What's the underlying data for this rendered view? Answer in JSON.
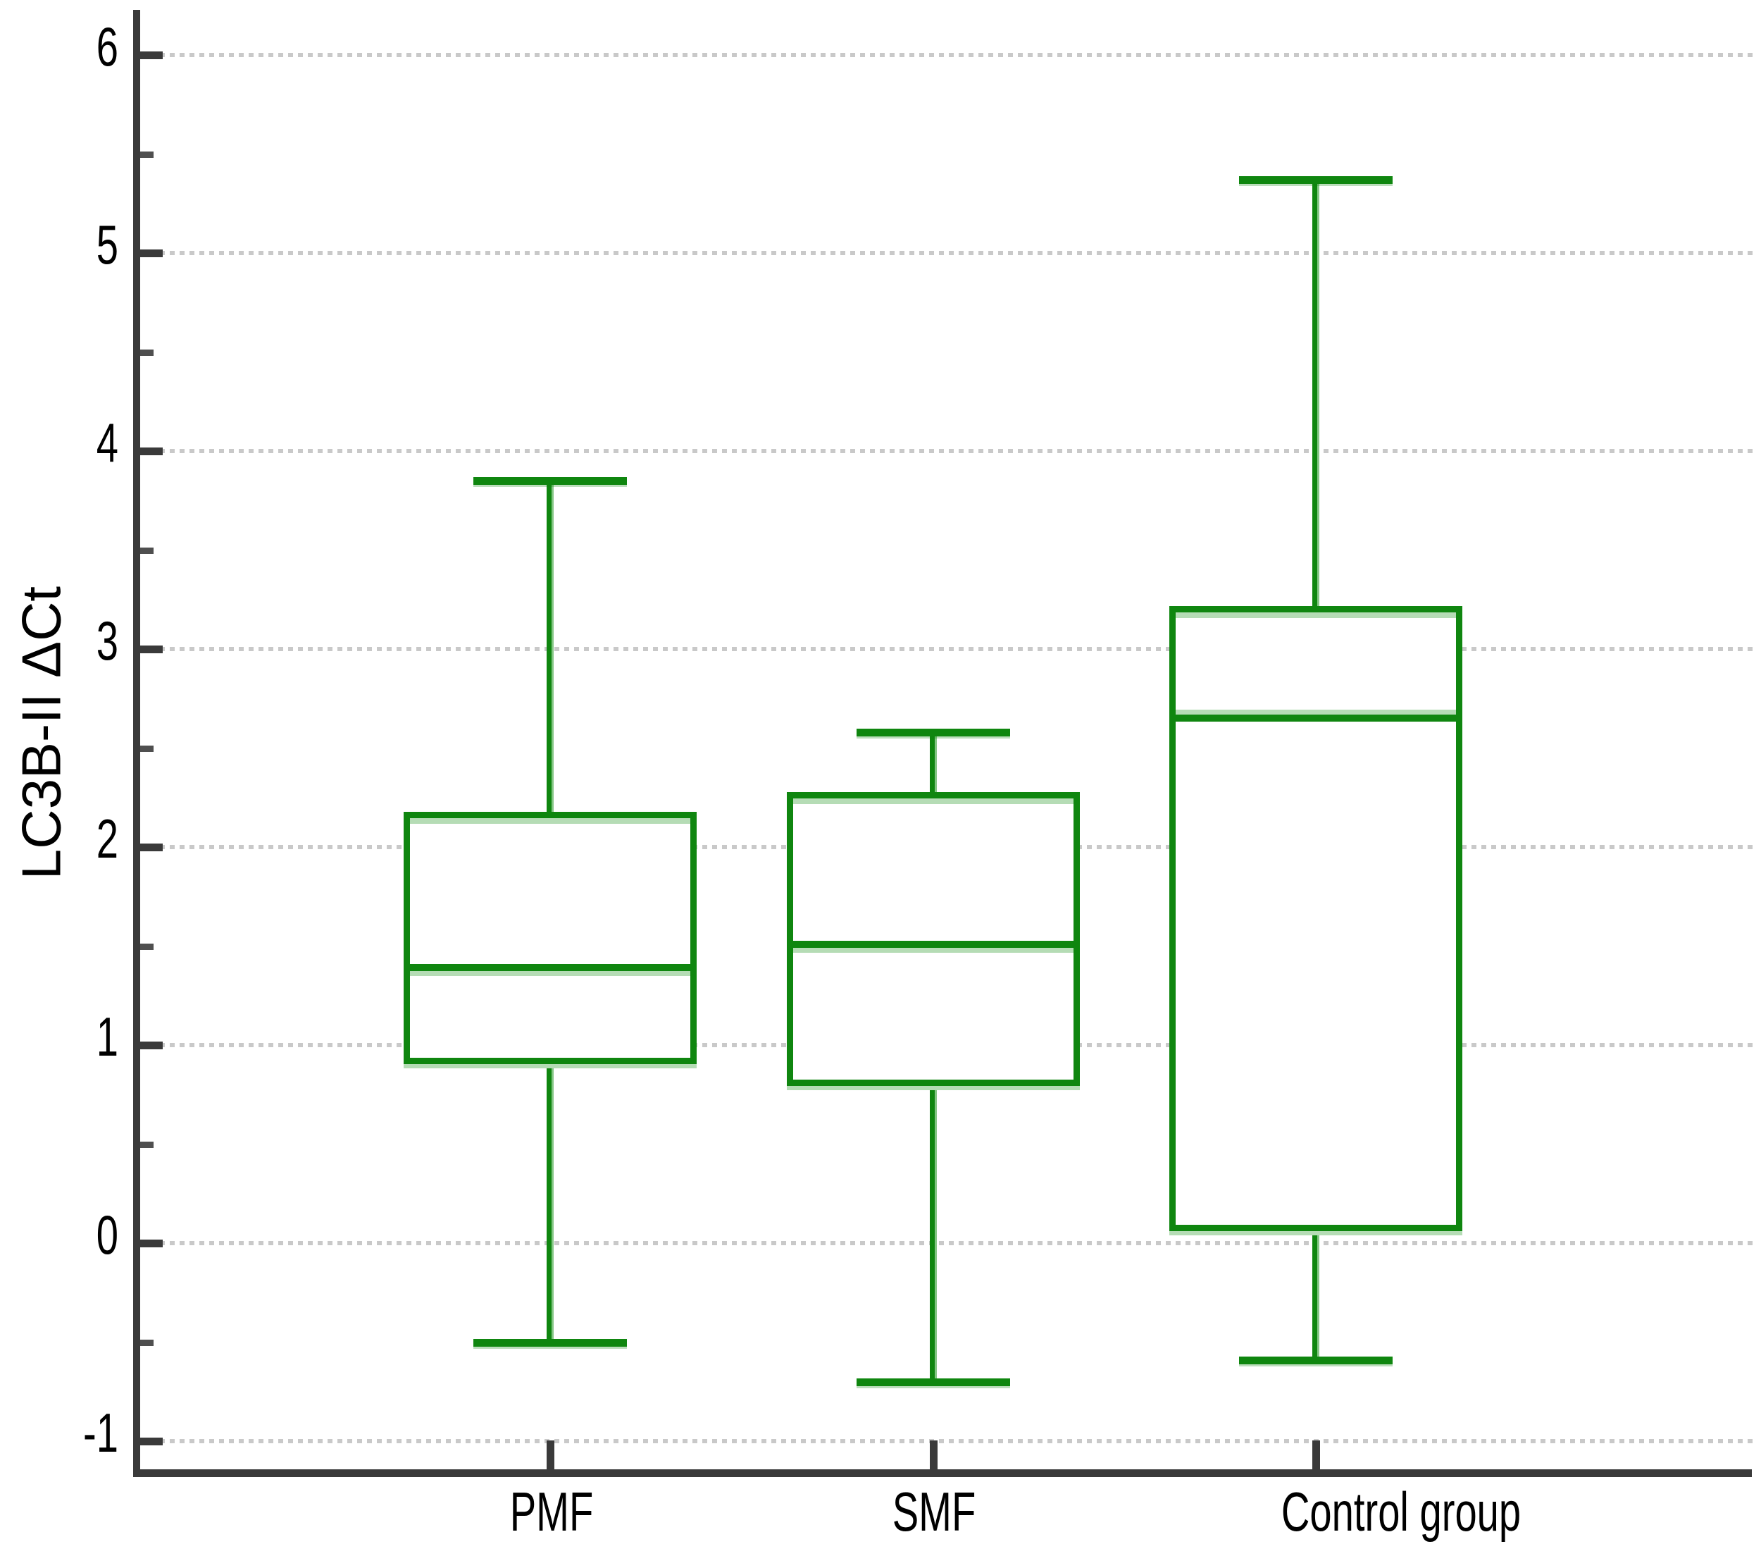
{
  "figure": {
    "background": "#ffffff",
    "title": ""
  },
  "y_axis": {
    "label": "LC3B-II ΔCt",
    "tick_labels": [
      "6",
      "5",
      "4",
      "3",
      "2",
      "1",
      "0",
      "-1"
    ],
    "max": 6,
    "min": -1,
    "major_step": 1,
    "minor_step": 0.5
  },
  "x_axis": {
    "categories": [
      "PMF",
      "SMF",
      "Control group"
    ]
  },
  "chart_data": {
    "type": "boxplot",
    "title": "",
    "xlabel": "",
    "ylabel": "LC3B-II ΔCt",
    "ylim": [
      -1,
      6
    ],
    "grid": "horizontal dotted gridlines at every integer",
    "legend": "none",
    "categories": [
      "PMF",
      "SMF",
      "Control group"
    ],
    "series": [
      {
        "name": "PMF",
        "min": -0.5,
        "q1": 0.92,
        "median": 1.39,
        "q3": 2.16,
        "max": 3.85
      },
      {
        "name": "SMF",
        "min": -0.7,
        "q1": 0.81,
        "median": 1.51,
        "q3": 2.26,
        "max": 2.58
      },
      {
        "name": "Control group",
        "min": -0.59,
        "q1": 0.08,
        "median": 2.65,
        "q3": 3.2,
        "max": 5.37
      }
    ]
  },
  "colors": {
    "box_green": "#0f860f",
    "box_green_light": "#b5dcb5",
    "whisker_light_edge": "#85c685",
    "axis": "#3a3a3a",
    "gridline": "#c9c9c9",
    "text": "#000000"
  }
}
